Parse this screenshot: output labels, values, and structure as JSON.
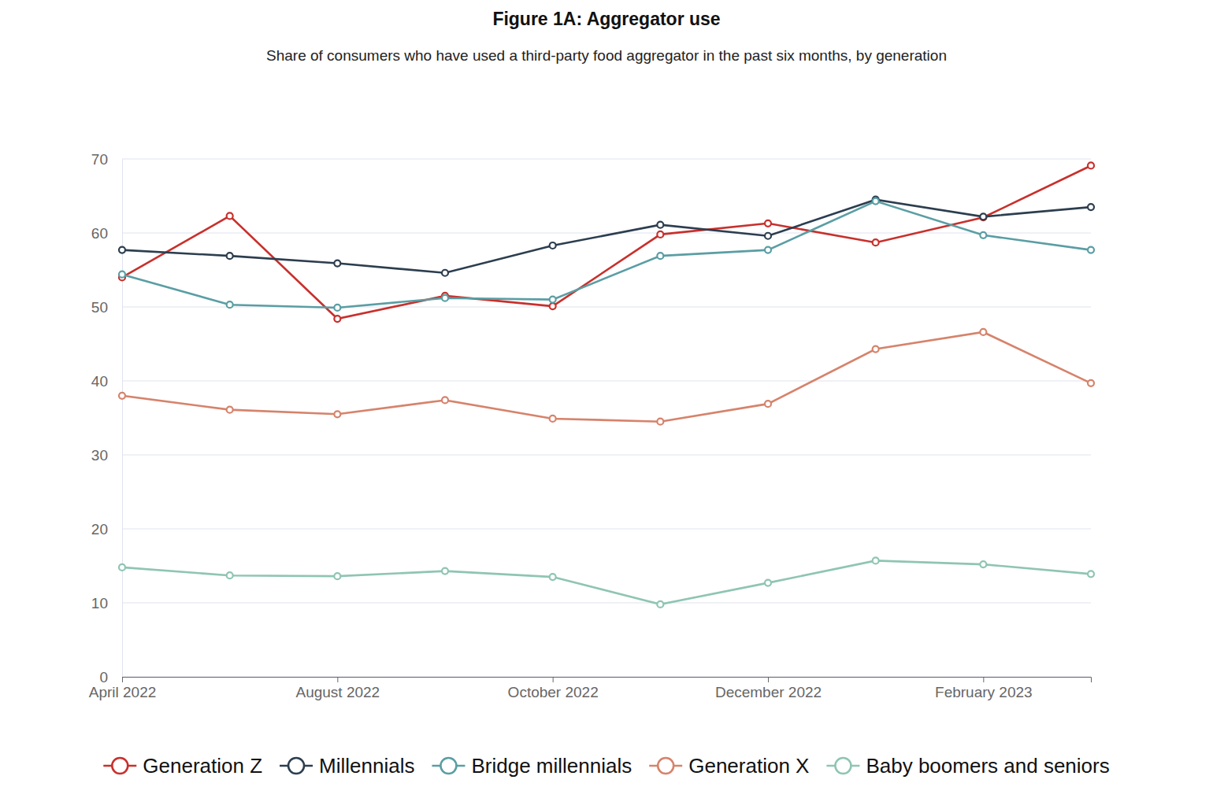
{
  "chart_data": {
    "type": "line",
    "title": "Figure 1A: Aggregator use",
    "subtitle": "Share of consumers who have used a third-party food aggregator in the past six months, by generation",
    "categories": [
      "April 2022",
      null,
      "August 2022",
      null,
      "October 2022",
      null,
      "December 2022",
      null,
      "February 2023",
      null
    ],
    "series": [
      {
        "name": "Generation Z",
        "color": "#c8302c",
        "values": [
          54.0,
          62.3,
          48.4,
          51.5,
          50.1,
          59.8,
          61.3,
          58.7,
          62.1,
          69.1
        ]
      },
      {
        "name": "Millennials",
        "color": "#2c3e4f",
        "values": [
          57.7,
          56.9,
          55.9,
          54.6,
          58.3,
          61.1,
          59.6,
          64.5,
          62.2,
          63.5
        ]
      },
      {
        "name": "Bridge millennials",
        "color": "#5a9ea4",
        "values": [
          54.4,
          50.3,
          49.9,
          51.2,
          51.0,
          56.9,
          57.7,
          64.3,
          59.7,
          57.7
        ]
      },
      {
        "name": "Generation X",
        "color": "#d6836b",
        "values": [
          38.0,
          36.1,
          35.5,
          37.4,
          34.9,
          34.5,
          36.9,
          44.3,
          46.6,
          39.7
        ]
      },
      {
        "name": "Baby boomers and seniors",
        "color": "#8fc5b2",
        "values": [
          14.8,
          13.7,
          13.6,
          14.3,
          13.5,
          9.8,
          12.7,
          15.7,
          15.2,
          13.9
        ]
      }
    ],
    "ylim": [
      0,
      70
    ],
    "yticks": [
      0,
      10,
      20,
      30,
      40,
      50,
      60,
      70
    ],
    "grid": true,
    "legend": "bottom",
    "marker": "circle"
  }
}
